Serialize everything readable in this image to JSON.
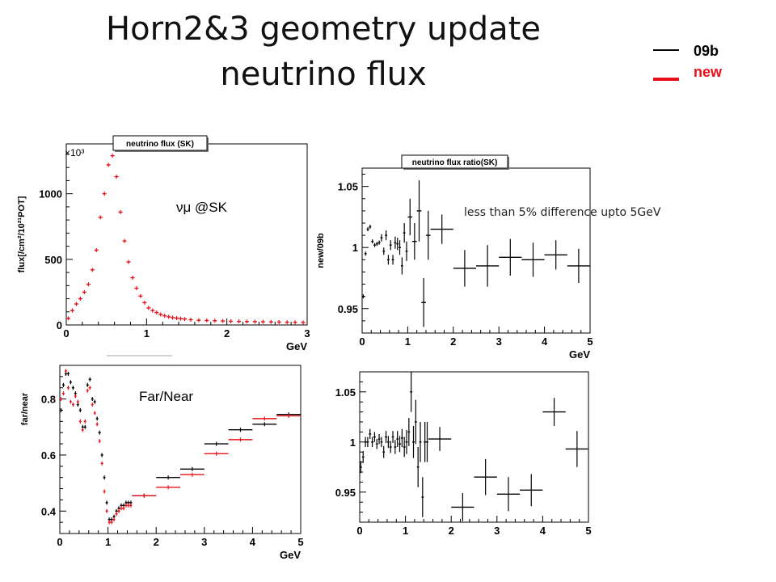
{
  "slide": {
    "title_line1": "Horn2&3 geometry update",
    "title_line2": "neutrino flux",
    "annotation": "less than 5% difference upto 5GeV"
  },
  "legend": {
    "items": [
      {
        "label": "09b",
        "color": "#000000"
      },
      {
        "label": "new",
        "color": "#e8101a"
      }
    ]
  },
  "colors": {
    "old": "#000000",
    "new": "#e8101a",
    "axis": "#000000"
  },
  "chart_data": [
    {
      "id": "flux",
      "type": "scatter",
      "title": "neutrino flux (SK)",
      "xlabel": "GeV",
      "ylabel": "flux[/cm²/10²¹POT]",
      "multiplier": "×10³",
      "annotation": "νμ @SK",
      "xlim": [
        0,
        3
      ],
      "ylim": [
        0,
        1380
      ],
      "xticks": [
        0,
        1,
        2,
        3
      ],
      "yticks": [
        0,
        500,
        1000
      ],
      "bin_width": 0.05,
      "series": [
        {
          "color": "#e8101a",
          "x": [
            0.025,
            0.075,
            0.125,
            0.175,
            0.225,
            0.275,
            0.325,
            0.375,
            0.425,
            0.475,
            0.525,
            0.575,
            0.625,
            0.675,
            0.725,
            0.775,
            0.825,
            0.875,
            0.925,
            0.975,
            1.025,
            1.075,
            1.125,
            1.175,
            1.225,
            1.275,
            1.325,
            1.375,
            1.425,
            1.475,
            1.55,
            1.65,
            1.75,
            1.85,
            1.95,
            2.05,
            2.15,
            2.25,
            2.35,
            2.45,
            2.55,
            2.65,
            2.75,
            2.85,
            2.95
          ],
          "values": [
            50,
            110,
            160,
            200,
            250,
            310,
            420,
            570,
            820,
            1000,
            1220,
            1290,
            1130,
            860,
            640,
            480,
            360,
            280,
            220,
            170,
            130,
            110,
            95,
            80,
            70,
            62,
            56,
            52,
            48,
            45,
            40,
            36,
            34,
            32,
            30,
            28,
            27,
            26,
            25,
            24,
            23,
            22,
            21,
            20,
            19
          ]
        }
      ]
    },
    {
      "id": "ratio-sk",
      "type": "scatter",
      "title": "neutrino flux ratio(SK)",
      "xlabel": "GeV",
      "ylabel": "new/09b",
      "xlim": [
        0,
        5
      ],
      "ylim": [
        0.93,
        1.065
      ],
      "xticks": [
        0,
        1,
        2,
        3,
        4,
        5
      ],
      "yticks": [
        0.95,
        1,
        1.05
      ],
      "series": [
        {
          "color": "#000000",
          "x": [
            0.025,
            0.075,
            0.125,
            0.175,
            0.225,
            0.275,
            0.325,
            0.375,
            0.425,
            0.475,
            0.525,
            0.575,
            0.625,
            0.675,
            0.725,
            0.775,
            0.825,
            0.875,
            0.925,
            0.975,
            1.05,
            1.15,
            1.25,
            1.35,
            1.45,
            1.75,
            2.25,
            2.75,
            3.25,
            3.75,
            4.25,
            4.75
          ],
          "values": [
            0.96,
            0.995,
            1.015,
            1.017,
            1.005,
            1.002,
            1.003,
            1.004,
            1.008,
            0.997,
            1.01,
            0.99,
            1.002,
            0.99,
            1.004,
            1.003,
            1.0,
            0.985,
            1.012,
            0.997,
            1.025,
            1.005,
            1.03,
            0.955,
            1.01,
            1.015,
            0.983,
            0.985,
            0.992,
            0.99,
            0.994,
            0.985
          ],
          "xerr": [
            0.025,
            0.025,
            0.025,
            0.025,
            0.025,
            0.025,
            0.025,
            0.025,
            0.025,
            0.025,
            0.025,
            0.025,
            0.025,
            0.025,
            0.025,
            0.025,
            0.025,
            0.025,
            0.025,
            0.025,
            0.05,
            0.05,
            0.05,
            0.05,
            0.05,
            0.25,
            0.25,
            0.25,
            0.25,
            0.25,
            0.25,
            0.25
          ],
          "yerr": [
            0,
            0,
            0,
            0,
            0,
            0,
            0,
            0,
            0.003,
            0.003,
            0.004,
            0.004,
            0.004,
            0.004,
            0.005,
            0.005,
            0.006,
            0.007,
            0.008,
            0.008,
            0.015,
            0.015,
            0.025,
            0.02,
            0.02,
            0.012,
            0.015,
            0.017,
            0.015,
            0.014,
            0.012,
            0.014
          ]
        }
      ]
    },
    {
      "id": "far-near",
      "type": "scatter",
      "title": "",
      "xlabel": "GeV",
      "ylabel": "far/near",
      "annotation": "Far/Near",
      "xlim": [
        0,
        5
      ],
      "ylim": [
        0.32,
        0.92
      ],
      "xticks": [
        0,
        1,
        2,
        3,
        4,
        5
      ],
      "yticks": [
        0.4,
        0.6,
        0.8
      ],
      "series": [
        {
          "color": "#000000",
          "x": [
            0.025,
            0.075,
            0.125,
            0.175,
            0.225,
            0.275,
            0.325,
            0.375,
            0.425,
            0.475,
            0.525,
            0.575,
            0.625,
            0.675,
            0.725,
            0.775,
            0.825,
            0.875,
            0.925,
            0.975,
            1.025,
            1.075,
            1.125,
            1.175,
            1.225,
            1.275,
            1.325,
            1.375,
            1.425,
            1.475,
            1.75,
            2.25,
            2.75,
            3.25,
            3.75,
            4.25,
            4.75
          ],
          "values": [
            0.76,
            0.85,
            0.89,
            0.89,
            0.86,
            0.84,
            0.82,
            0.78,
            0.76,
            0.7,
            0.7,
            0.85,
            0.87,
            0.8,
            0.79,
            0.73,
            0.68,
            0.6,
            0.52,
            0.43,
            0.37,
            0.37,
            0.38,
            0.4,
            0.41,
            0.42,
            0.42,
            0.43,
            0.43,
            0.43,
            0.455,
            0.52,
            0.55,
            0.64,
            0.69,
            0.71,
            0.745
          ],
          "xerr": [
            0.025,
            0.025,
            0.025,
            0.025,
            0.025,
            0.025,
            0.025,
            0.025,
            0.025,
            0.025,
            0.025,
            0.025,
            0.025,
            0.025,
            0.025,
            0.025,
            0.025,
            0.025,
            0.025,
            0.025,
            0.025,
            0.025,
            0.025,
            0.025,
            0.025,
            0.025,
            0.025,
            0.025,
            0.025,
            0.025,
            0.25,
            0.25,
            0.25,
            0.25,
            0.25,
            0.25,
            0.25
          ]
        },
        {
          "color": "#e8101a",
          "x": [
            0.025,
            0.075,
            0.125,
            0.175,
            0.225,
            0.275,
            0.325,
            0.375,
            0.425,
            0.475,
            0.525,
            0.575,
            0.625,
            0.675,
            0.725,
            0.775,
            0.825,
            0.875,
            0.925,
            0.975,
            1.025,
            1.075,
            1.125,
            1.175,
            1.225,
            1.275,
            1.325,
            1.375,
            1.425,
            1.475,
            1.75,
            2.25,
            2.75,
            3.25,
            3.75,
            4.25,
            4.75
          ],
          "values": [
            0.8,
            0.82,
            0.9,
            0.84,
            0.79,
            0.78,
            0.81,
            0.79,
            0.72,
            0.69,
            0.72,
            0.83,
            0.84,
            0.78,
            0.75,
            0.71,
            0.65,
            0.57,
            0.47,
            0.4,
            0.36,
            0.36,
            0.37,
            0.39,
            0.4,
            0.41,
            0.41,
            0.42,
            0.42,
            0.42,
            0.455,
            0.485,
            0.53,
            0.605,
            0.655,
            0.73,
            0.74
          ],
          "xerr": [
            0.025,
            0.025,
            0.025,
            0.025,
            0.025,
            0.025,
            0.025,
            0.025,
            0.025,
            0.025,
            0.025,
            0.025,
            0.025,
            0.025,
            0.025,
            0.025,
            0.025,
            0.025,
            0.025,
            0.025,
            0.025,
            0.025,
            0.025,
            0.025,
            0.025,
            0.025,
            0.025,
            0.025,
            0.025,
            0.025,
            0.25,
            0.25,
            0.25,
            0.25,
            0.25,
            0.25,
            0.25
          ]
        }
      ]
    },
    {
      "id": "ratio-near",
      "type": "scatter",
      "title": "",
      "xlabel": "",
      "ylabel": "",
      "xlim": [
        0,
        5
      ],
      "ylim": [
        0.92,
        1.07
      ],
      "xticks": [
        0,
        1,
        2,
        3,
        4,
        5
      ],
      "yticks": [
        0.95,
        1,
        1.05
      ],
      "series": [
        {
          "color": "#000000",
          "x": [
            0.025,
            0.075,
            0.125,
            0.175,
            0.225,
            0.275,
            0.325,
            0.375,
            0.425,
            0.475,
            0.525,
            0.575,
            0.625,
            0.675,
            0.725,
            0.775,
            0.825,
            0.875,
            0.925,
            0.975,
            1.025,
            1.075,
            1.125,
            1.175,
            1.225,
            1.275,
            1.325,
            1.375,
            1.425,
            1.475,
            1.75,
            2.25,
            2.75,
            3.25,
            3.75,
            4.25,
            4.75
          ],
          "values": [
            0.975,
            0.985,
            1.0,
            1.0,
            1.008,
            1.0,
            1.005,
            0.998,
            1.003,
            1.0,
            0.99,
            1.005,
            1.0,
            0.995,
            1.005,
            0.995,
            1.003,
            0.998,
            1.004,
            0.995,
            1.0,
            1.01,
            1.05,
            1.0,
            1.02,
            0.975,
            1.0,
            0.945,
            1.0,
            1.0,
            1.003,
            0.935,
            0.965,
            0.948,
            0.952,
            1.03,
            0.993
          ],
          "xerr": [
            0.025,
            0.025,
            0.025,
            0.025,
            0.025,
            0.025,
            0.025,
            0.025,
            0.025,
            0.025,
            0.025,
            0.025,
            0.025,
            0.025,
            0.025,
            0.025,
            0.025,
            0.025,
            0.025,
            0.025,
            0.025,
            0.025,
            0.025,
            0.025,
            0.025,
            0.025,
            0.025,
            0.025,
            0.025,
            0.025,
            0.25,
            0.25,
            0.25,
            0.25,
            0.25,
            0.25,
            0.25
          ],
          "yerr": [
            0.006,
            0.006,
            0.005,
            0.005,
            0.005,
            0.005,
            0.005,
            0.005,
            0.005,
            0.005,
            0.006,
            0.006,
            0.006,
            0.006,
            0.006,
            0.007,
            0.008,
            0.008,
            0.009,
            0.01,
            0.012,
            0.014,
            0.02,
            0.016,
            0.022,
            0.02,
            0.02,
            0.02,
            0.02,
            0.02,
            0.012,
            0.014,
            0.018,
            0.017,
            0.016,
            0.014,
            0.018
          ]
        }
      ]
    }
  ]
}
